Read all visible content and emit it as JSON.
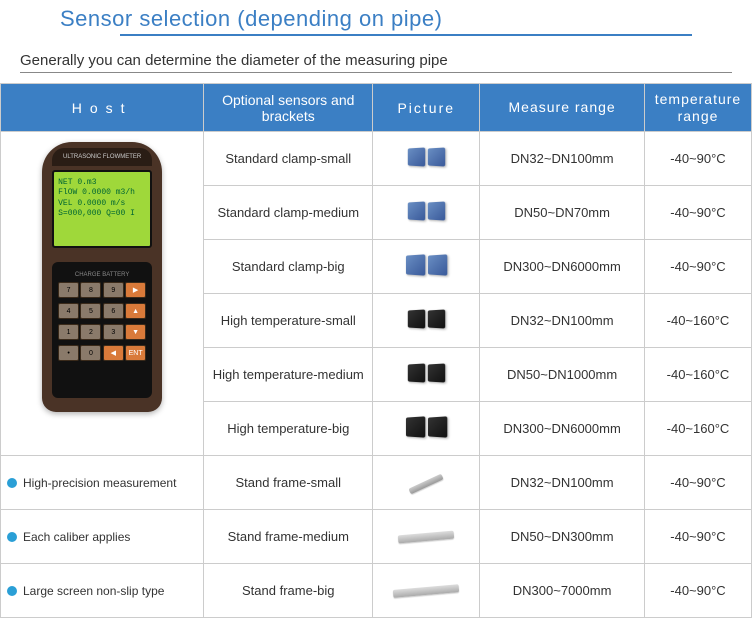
{
  "title": "Sensor selection (depending on pipe)",
  "subtitle": "Generally you can determine the diameter of the measuring pipe",
  "headers": {
    "host": "Host",
    "sensors": "Optional sensors and brackets",
    "picture": "Picture",
    "measure": "Measure range",
    "temp": "temperature range"
  },
  "device_screen": {
    "l1": "NET          0.m3",
    "l2": "FlOW  0.0000 m3/h",
    "l3": "VEL    0.0000 m/s",
    "l4": "S=000,000  Q=00 I"
  },
  "device_top": "ULTRASONIC FLOWMETER",
  "rows": [
    {
      "sensor": "Standard clamp-small",
      "picture": "clamp-blue-pair-s",
      "measure": "DN32~DN100mm",
      "temp": "-40~90°C"
    },
    {
      "sensor": "Standard clamp-medium",
      "picture": "clamp-blue-pair-m",
      "measure": "DN50~DN70mm",
      "temp": "-40~90°C"
    },
    {
      "sensor": "Standard clamp-big",
      "picture": "clamp-blue-pair-b",
      "measure": "DN300~DN6000mm",
      "temp": "-40~90°C"
    },
    {
      "sensor": "High temperature-small",
      "picture": "clamp-black-pair-s",
      "measure": "DN32~DN100mm",
      "temp": "-40~160°C"
    },
    {
      "sensor": "High temperature-medium",
      "picture": "clamp-black-pair-m",
      "measure": "DN50~DN1000mm",
      "temp": "-40~160°C"
    },
    {
      "sensor": "High temperature-big",
      "picture": "clamp-black-pair-b",
      "measure": "DN300~DN6000mm",
      "temp": "-40~160°C"
    },
    {
      "sensor": "Stand frame-small",
      "picture": "frame-s",
      "measure": "DN32~DN100mm",
      "temp": "-40~90°C"
    },
    {
      "sensor": "Stand frame-medium",
      "picture": "frame-m",
      "measure": "DN50~DN300mm",
      "temp": "-40~90°C"
    },
    {
      "sensor": "Stand frame-big",
      "picture": "frame-b",
      "measure": "DN300~7000mm",
      "temp": "-40~90°C"
    }
  ],
  "features": [
    "High-precision measurement",
    "Each caliber applies",
    "Large screen non-slip type"
  ],
  "keypad": [
    [
      "7",
      "8",
      "9",
      "▶"
    ],
    [
      "4",
      "5",
      "6",
      "▲"
    ],
    [
      "1",
      "2",
      "3",
      "▼"
    ],
    [
      "•",
      "0",
      "◀",
      "ENT"
    ]
  ],
  "colors": {
    "header_bg": "#3b7fc4",
    "bullet": "#2a9fd6",
    "border": "#cccccc"
  }
}
